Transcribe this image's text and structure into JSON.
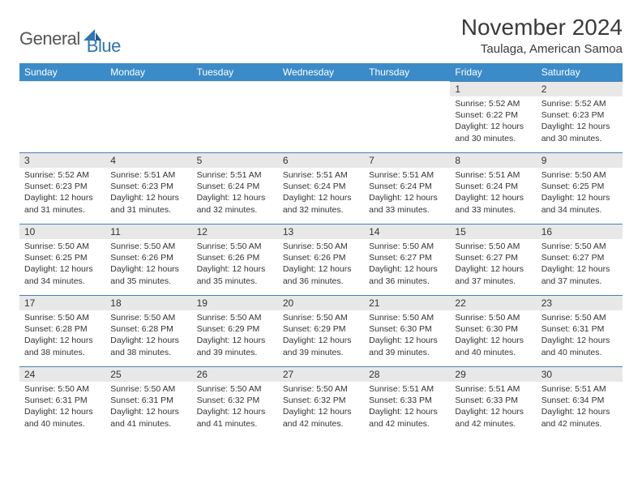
{
  "brand": {
    "general": "General",
    "blue": "Blue"
  },
  "header": {
    "month_title": "November 2024",
    "location": "Taulaga, American Samoa"
  },
  "colors": {
    "header_bg": "#3b8bc9",
    "header_text": "#ffffff",
    "daynum_bg": "#e8e8e8",
    "body_text": "#333333",
    "rule": "#4a7fb5",
    "logo_gray": "#555555",
    "logo_blue": "#2e75b6",
    "page_bg": "#ffffff"
  },
  "weekdays": [
    "Sunday",
    "Monday",
    "Tuesday",
    "Wednesday",
    "Thursday",
    "Friday",
    "Saturday"
  ],
  "weeks": [
    [
      null,
      null,
      null,
      null,
      null,
      {
        "n": "1",
        "sunrise": "5:52 AM",
        "sunset": "6:22 PM",
        "daylight": "12 hours and 30 minutes."
      },
      {
        "n": "2",
        "sunrise": "5:52 AM",
        "sunset": "6:23 PM",
        "daylight": "12 hours and 30 minutes."
      }
    ],
    [
      {
        "n": "3",
        "sunrise": "5:52 AM",
        "sunset": "6:23 PM",
        "daylight": "12 hours and 31 minutes."
      },
      {
        "n": "4",
        "sunrise": "5:51 AM",
        "sunset": "6:23 PM",
        "daylight": "12 hours and 31 minutes."
      },
      {
        "n": "5",
        "sunrise": "5:51 AM",
        "sunset": "6:24 PM",
        "daylight": "12 hours and 32 minutes."
      },
      {
        "n": "6",
        "sunrise": "5:51 AM",
        "sunset": "6:24 PM",
        "daylight": "12 hours and 32 minutes."
      },
      {
        "n": "7",
        "sunrise": "5:51 AM",
        "sunset": "6:24 PM",
        "daylight": "12 hours and 33 minutes."
      },
      {
        "n": "8",
        "sunrise": "5:51 AM",
        "sunset": "6:24 PM",
        "daylight": "12 hours and 33 minutes."
      },
      {
        "n": "9",
        "sunrise": "5:50 AM",
        "sunset": "6:25 PM",
        "daylight": "12 hours and 34 minutes."
      }
    ],
    [
      {
        "n": "10",
        "sunrise": "5:50 AM",
        "sunset": "6:25 PM",
        "daylight": "12 hours and 34 minutes."
      },
      {
        "n": "11",
        "sunrise": "5:50 AM",
        "sunset": "6:26 PM",
        "daylight": "12 hours and 35 minutes."
      },
      {
        "n": "12",
        "sunrise": "5:50 AM",
        "sunset": "6:26 PM",
        "daylight": "12 hours and 35 minutes."
      },
      {
        "n": "13",
        "sunrise": "5:50 AM",
        "sunset": "6:26 PM",
        "daylight": "12 hours and 36 minutes."
      },
      {
        "n": "14",
        "sunrise": "5:50 AM",
        "sunset": "6:27 PM",
        "daylight": "12 hours and 36 minutes."
      },
      {
        "n": "15",
        "sunrise": "5:50 AM",
        "sunset": "6:27 PM",
        "daylight": "12 hours and 37 minutes."
      },
      {
        "n": "16",
        "sunrise": "5:50 AM",
        "sunset": "6:27 PM",
        "daylight": "12 hours and 37 minutes."
      }
    ],
    [
      {
        "n": "17",
        "sunrise": "5:50 AM",
        "sunset": "6:28 PM",
        "daylight": "12 hours and 38 minutes."
      },
      {
        "n": "18",
        "sunrise": "5:50 AM",
        "sunset": "6:28 PM",
        "daylight": "12 hours and 38 minutes."
      },
      {
        "n": "19",
        "sunrise": "5:50 AM",
        "sunset": "6:29 PM",
        "daylight": "12 hours and 39 minutes."
      },
      {
        "n": "20",
        "sunrise": "5:50 AM",
        "sunset": "6:29 PM",
        "daylight": "12 hours and 39 minutes."
      },
      {
        "n": "21",
        "sunrise": "5:50 AM",
        "sunset": "6:30 PM",
        "daylight": "12 hours and 39 minutes."
      },
      {
        "n": "22",
        "sunrise": "5:50 AM",
        "sunset": "6:30 PM",
        "daylight": "12 hours and 40 minutes."
      },
      {
        "n": "23",
        "sunrise": "5:50 AM",
        "sunset": "6:31 PM",
        "daylight": "12 hours and 40 minutes."
      }
    ],
    [
      {
        "n": "24",
        "sunrise": "5:50 AM",
        "sunset": "6:31 PM",
        "daylight": "12 hours and 40 minutes."
      },
      {
        "n": "25",
        "sunrise": "5:50 AM",
        "sunset": "6:31 PM",
        "daylight": "12 hours and 41 minutes."
      },
      {
        "n": "26",
        "sunrise": "5:50 AM",
        "sunset": "6:32 PM",
        "daylight": "12 hours and 41 minutes."
      },
      {
        "n": "27",
        "sunrise": "5:50 AM",
        "sunset": "6:32 PM",
        "daylight": "12 hours and 42 minutes."
      },
      {
        "n": "28",
        "sunrise": "5:51 AM",
        "sunset": "6:33 PM",
        "daylight": "12 hours and 42 minutes."
      },
      {
        "n": "29",
        "sunrise": "5:51 AM",
        "sunset": "6:33 PM",
        "daylight": "12 hours and 42 minutes."
      },
      {
        "n": "30",
        "sunrise": "5:51 AM",
        "sunset": "6:34 PM",
        "daylight": "12 hours and 42 minutes."
      }
    ]
  ],
  "labels": {
    "sunrise": "Sunrise:",
    "sunset": "Sunset:",
    "daylight": "Daylight:"
  }
}
